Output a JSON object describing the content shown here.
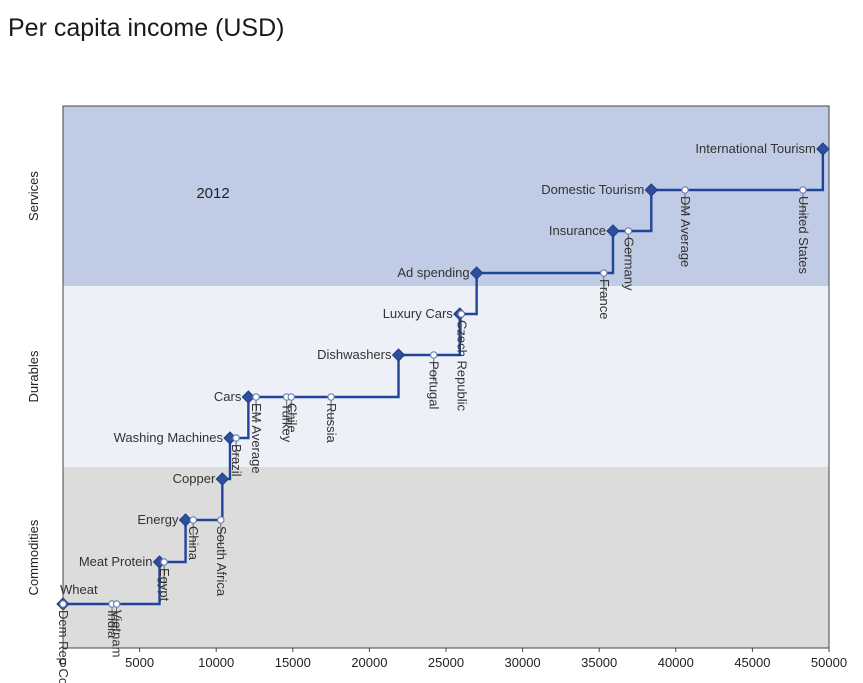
{
  "title": "Per capita income (USD)",
  "chart_data": {
    "type": "line",
    "title": "Per capita income (USD)",
    "annotation": "2012",
    "xlim": [
      0,
      50000
    ],
    "x_ticks": [
      0,
      5000,
      10000,
      15000,
      20000,
      25000,
      30000,
      35000,
      40000,
      45000,
      50000
    ],
    "bands": [
      {
        "label": "Services",
        "color": "#c0cce6"
      },
      {
        "label": "Durables",
        "color": "#eef0f7"
      },
      {
        "label": "Commodities",
        "color": "#dcdcdc"
      }
    ],
    "categories": [
      {
        "label": "Wheat",
        "x": 0,
        "level": 1
      },
      {
        "label": "Meat Protein",
        "x": 6300,
        "level": 2
      },
      {
        "label": "Energy",
        "x": 8000,
        "level": 3
      },
      {
        "label": "Copper",
        "x": 10400,
        "level": 4
      },
      {
        "label": "Washing Machines",
        "x": 10900,
        "level": 5
      },
      {
        "label": "Cars",
        "x": 12100,
        "level": 6
      },
      {
        "label": "Dishwashers",
        "x": 21900,
        "level": 7
      },
      {
        "label": "Luxury Cars",
        "x": 25900,
        "level": 8
      },
      {
        "label": "Ad spending",
        "x": 27000,
        "level": 9
      },
      {
        "label": "Insurance",
        "x": 35900,
        "level": 10
      },
      {
        "label": "Domestic Tourism",
        "x": 38400,
        "level": 11
      },
      {
        "label": "International Tourism",
        "x": 49600,
        "level": 12
      }
    ],
    "countries": [
      {
        "label": "Dem Rep Congo",
        "x": 0
      },
      {
        "label": "India",
        "x": 3200
      },
      {
        "label": "Vietnam",
        "x": 3500
      },
      {
        "label": "Egypt",
        "x": 6600
      },
      {
        "label": "China",
        "x": 8500
      },
      {
        "label": "South Africa",
        "x": 10300
      },
      {
        "label": "Brazil",
        "x": 11300
      },
      {
        "label": "EM Average",
        "x": 12600
      },
      {
        "label": "Turkey",
        "x": 14600
      },
      {
        "label": "Chile",
        "x": 14900
      },
      {
        "label": "Russia",
        "x": 17500
      },
      {
        "label": "Portugal",
        "x": 24200
      },
      {
        "label": "Czech Republic",
        "x": 26000
      },
      {
        "label": "France",
        "x": 35300
      },
      {
        "label": "Germany",
        "x": 36900
      },
      {
        "label": "DM Average",
        "x": 40600
      },
      {
        "label": "United States",
        "x": 48300
      }
    ]
  }
}
